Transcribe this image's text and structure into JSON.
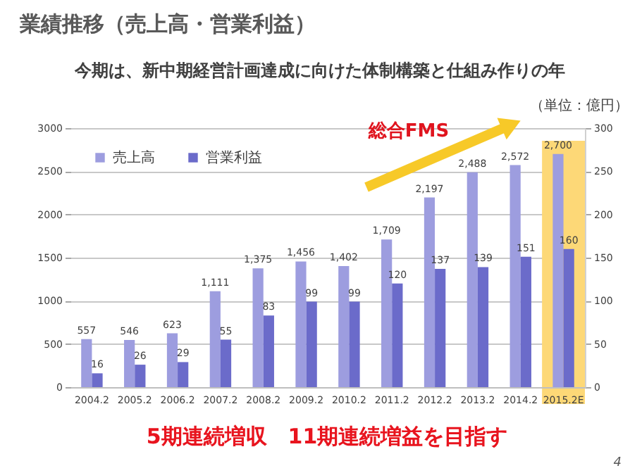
{
  "chart_data": {
    "type": "bar",
    "title": "業績推移（売上高・営業利益）",
    "subtitle": "今期は、新中期経営計画達成に向けた体制構築と仕組み作りの年",
    "categories": [
      "2004.2",
      "2005.2",
      "2006.2",
      "2007.2",
      "2008.2",
      "2009.2",
      "2010.2",
      "2011.2",
      "2012.2",
      "2013.2",
      "2014.2",
      "2015.2E"
    ],
    "series": [
      {
        "name": "売上高",
        "color": "#9d9ddf",
        "values": [
          557,
          546,
          623,
          1111,
          1375,
          1456,
          1402,
          1709,
          2197,
          2488,
          2572,
          2700
        ],
        "value_labels": [
          "557",
          "546",
          "623",
          "1,111",
          "1,375",
          "1,456",
          "1,402",
          "1,709",
          "2,197",
          "2,488",
          "2,572",
          "2,700"
        ]
      },
      {
        "name": "営業利益",
        "color": "#6b6bca",
        "axis": "y2",
        "values": [
          16,
          26,
          29,
          55,
          83,
          99,
          99,
          120,
          137,
          139,
          151,
          160
        ],
        "value_labels": [
          "16",
          "26",
          "29",
          "55",
          "83",
          "99",
          "99",
          "120",
          "137",
          "139",
          "151",
          "160"
        ]
      }
    ],
    "ylim": [
      0,
      3000
    ],
    "yticks": [
      0,
      500,
      1000,
      1500,
      2000,
      2500,
      3000
    ],
    "y2lim": [
      0,
      300
    ],
    "y2ticks": [
      0,
      50,
      100,
      150,
      200,
      250,
      300
    ],
    "grid": "y",
    "legend": "top left",
    "bands": [
      {
        "axis": "x",
        "from": "2015.2E",
        "to": "2015.2E",
        "color": "#fdd877"
      }
    ],
    "annotations": [
      "（単位：億円）",
      "総合FMS",
      "5期連続増収　11期連続増益を目指す",
      "4"
    ]
  }
}
